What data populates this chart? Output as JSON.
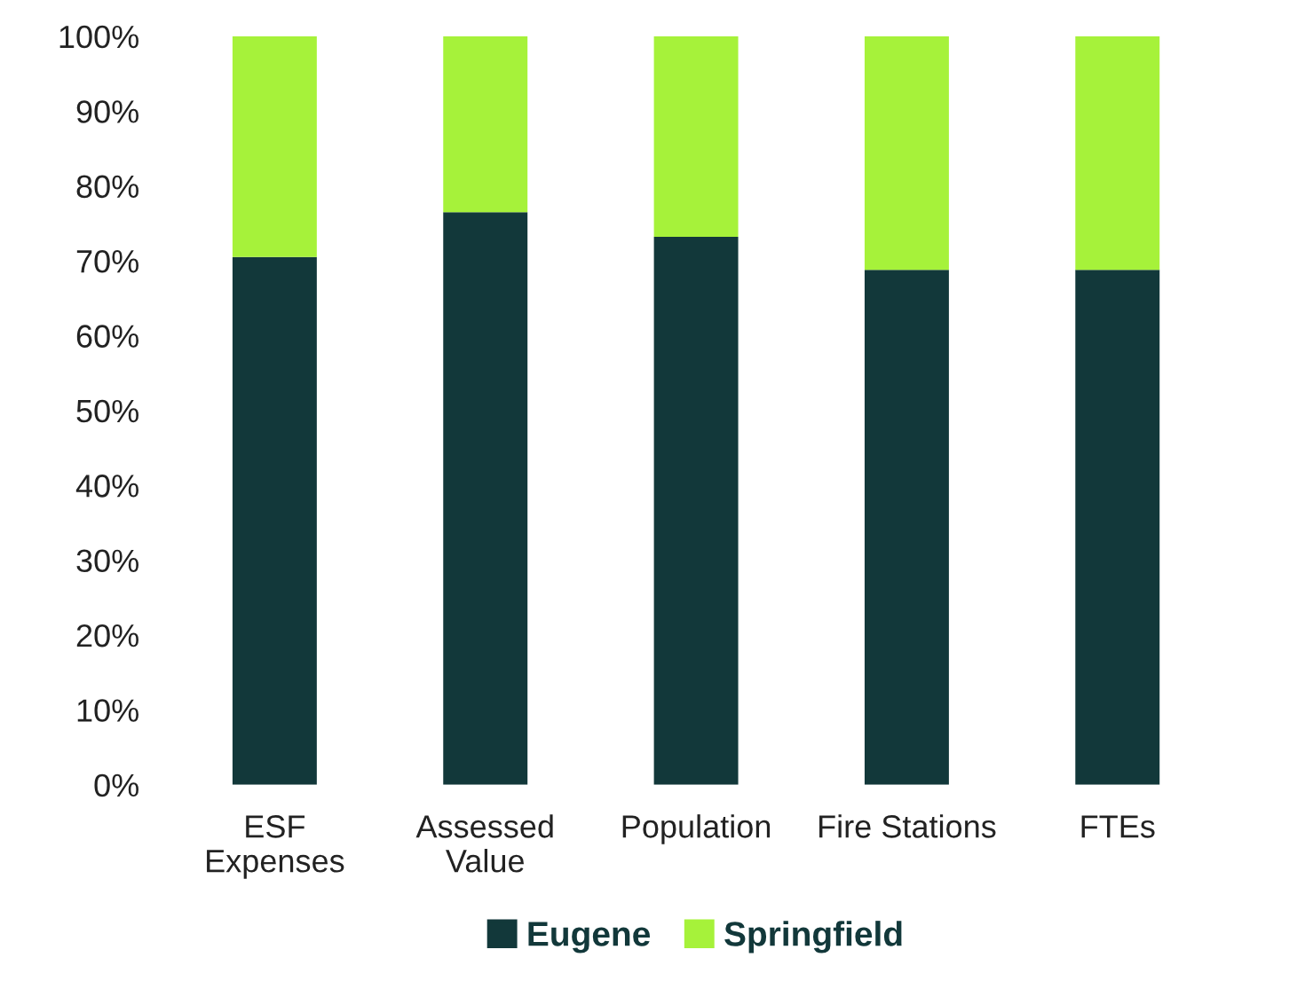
{
  "chart_data": {
    "type": "bar",
    "stacked": true,
    "categories": [
      "ESF\nExpenses",
      "Assessed\nValue",
      "Population",
      "Fire Stations",
      "FTEs"
    ],
    "series": [
      {
        "name": "Eugene",
        "color": "#12383a",
        "values": [
          70.5,
          76.5,
          73.2,
          68.8,
          68.8
        ]
      },
      {
        "name": "Springfield",
        "color": "#a6f23a",
        "values": [
          29.5,
          23.5,
          26.8,
          31.2,
          31.2
        ]
      }
    ],
    "ylim": [
      0,
      100
    ],
    "yticks": [
      {
        "value": 0,
        "label": "0%"
      },
      {
        "value": 10,
        "label": "10%"
      },
      {
        "value": 20,
        "label": "20%"
      },
      {
        "value": 30,
        "label": "30%"
      },
      {
        "value": 40,
        "label": "40%"
      },
      {
        "value": 50,
        "label": "50%"
      },
      {
        "value": 60,
        "label": "60%"
      },
      {
        "value": 70,
        "label": "70%"
      },
      {
        "value": 80,
        "label": "80%"
      },
      {
        "value": 90,
        "label": "90%"
      },
      {
        "value": 100,
        "label": "100%"
      }
    ],
    "grid": false,
    "legend": "bottom"
  }
}
